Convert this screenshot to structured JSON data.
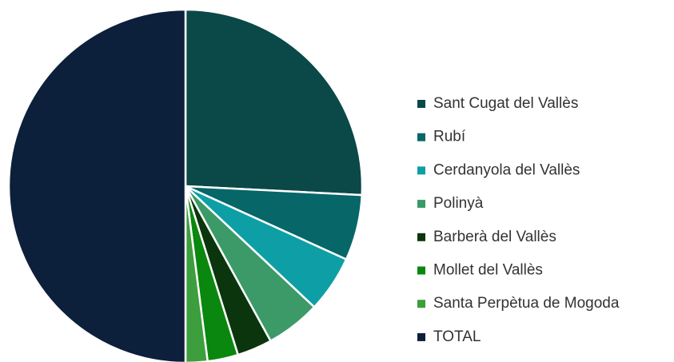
{
  "chart_data": {
    "type": "pie",
    "categories": [
      "Sant Cugat del Vallès",
      "Rubí",
      "Cerdanyola del Vallès",
      "Polinyà",
      "Barberà del Vallès",
      "Mollet del Vallès",
      "Santa Perpètua de Mogoda",
      "TOTAL"
    ],
    "values": [
      25.8,
      6.0,
      5.2,
      5.0,
      3.2,
      2.8,
      2.0,
      50
    ],
    "colors": [
      "#0b4848",
      "#076668",
      "#0e9fa6",
      "#3b9a68",
      "#0b360d",
      "#0a870e",
      "#3c9e3c",
      "#0c1f3b"
    ],
    "legend": "right"
  }
}
